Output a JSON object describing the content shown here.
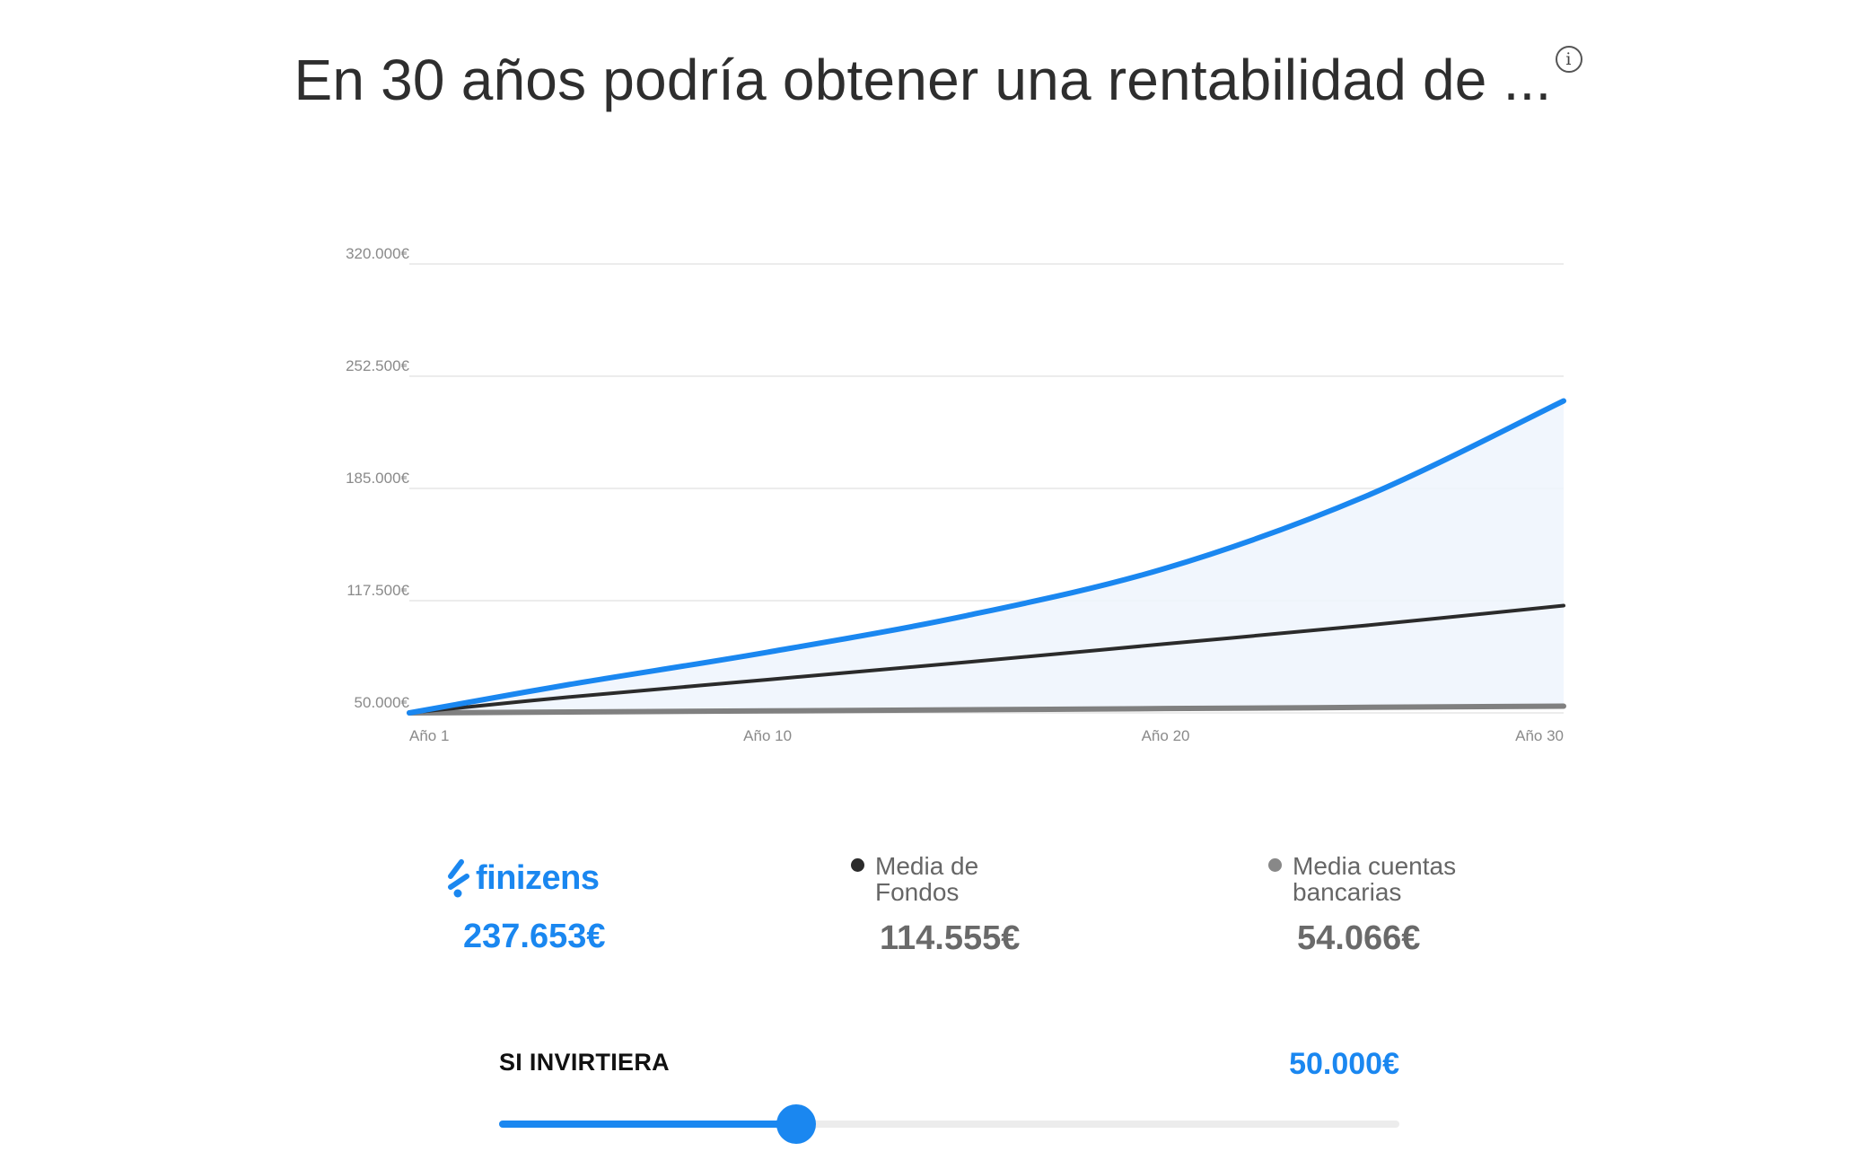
{
  "title": "En 30 años podría obtener una rentabilidad de ...",
  "info_glyph": "i",
  "chart_data": {
    "type": "line",
    "ylim": [
      50000,
      320000
    ],
    "yticks": [
      "320.000€",
      "252.500€",
      "185.000€",
      "117.500€",
      "50.000€"
    ],
    "ytick_values": [
      320000,
      252500,
      185000,
      117500,
      50000
    ],
    "xlim": [
      1,
      30
    ],
    "xticks": [
      "Año 1",
      "Año 10",
      "Año 20",
      "Año 30"
    ],
    "xtick_values": [
      1,
      10,
      20,
      30
    ],
    "grid": true,
    "series": [
      {
        "name": "finizens",
        "color": "#1a87f0",
        "fill": true,
        "x": [
          1,
          5,
          10,
          15,
          20,
          25,
          30
        ],
        "y": [
          50000,
          67000,
          86500,
          108500,
          137000,
          180000,
          237653
        ]
      },
      {
        "name": "Media de Fondos",
        "color": "#2b2b2b",
        "fill": false,
        "x": [
          1,
          5,
          10,
          15,
          20,
          25,
          30
        ],
        "y": [
          50000,
          59500,
          70000,
          80500,
          91500,
          102500,
          114555
        ]
      },
      {
        "name": "Media cuentas bancarias",
        "color": "#808080",
        "fill": false,
        "x": [
          1,
          10,
          20,
          30
        ],
        "y": [
          50000,
          51200,
          52600,
          54066
        ]
      }
    ]
  },
  "legend": {
    "finizens": {
      "brand": "finizens",
      "value": "237.653€",
      "color": "#1a87f0"
    },
    "fondos": {
      "line1": "Media de",
      "line2": "Fondos",
      "value": "114.555€",
      "color": "#2b2b2b"
    },
    "bancarias": {
      "line1": "Media cuentas",
      "line2": "bancarias",
      "value": "54.066€",
      "color": "#808080"
    }
  },
  "slider": {
    "label": "SI INVIRTIERA",
    "value": "50.000€",
    "position_fraction": 0.33,
    "accent": "#1a87f0"
  }
}
